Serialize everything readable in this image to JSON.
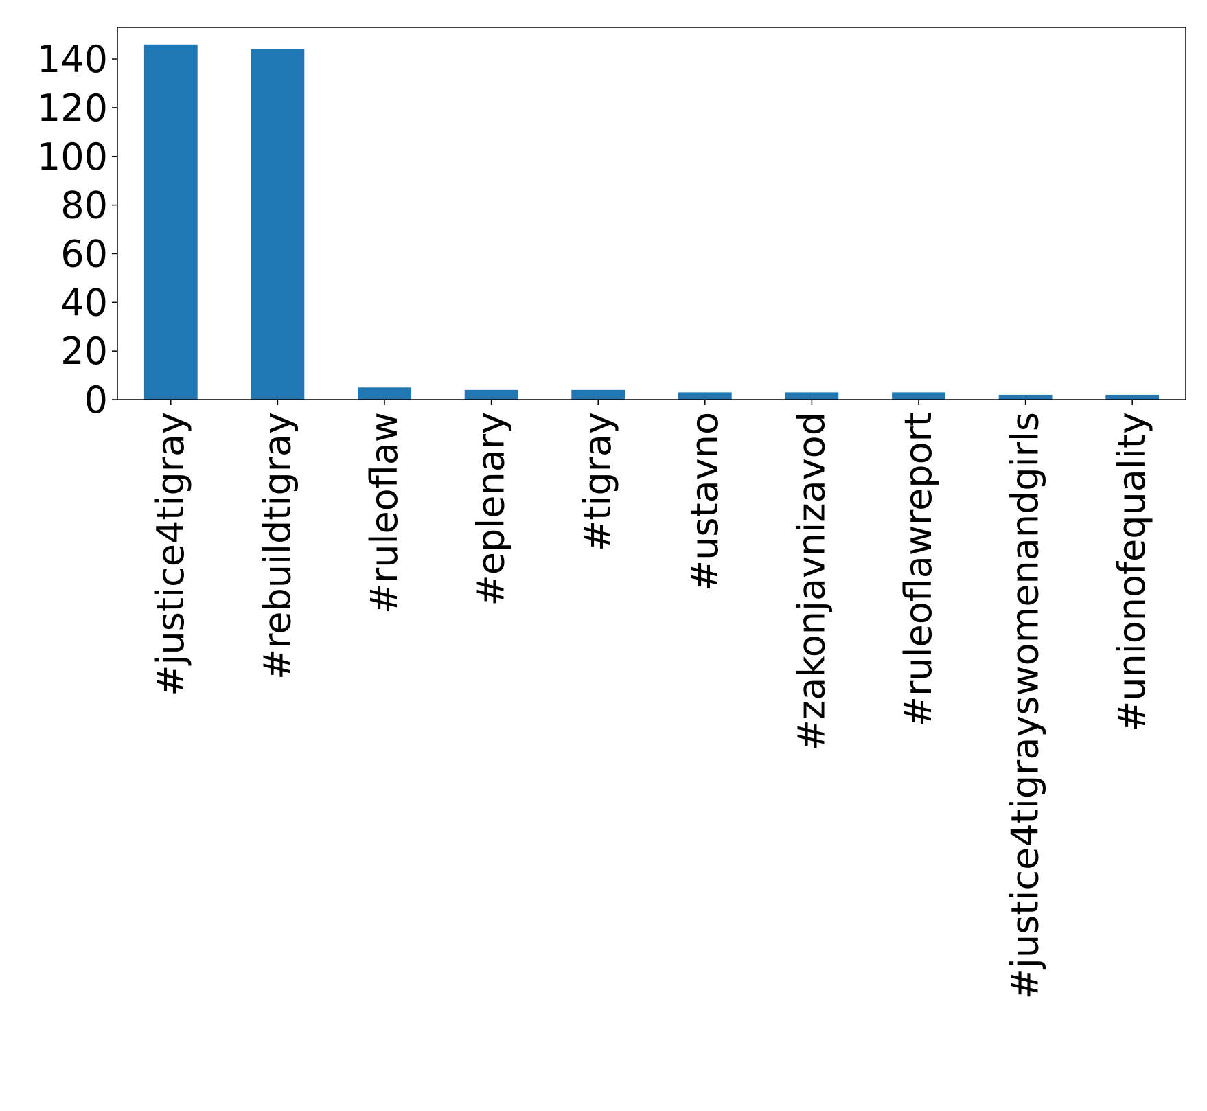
{
  "chart_data": {
    "type": "bar",
    "title": "",
    "xlabel": "",
    "ylabel": "",
    "categories": [
      "#justice4tigray",
      "#rebuildtigray",
      "#ruleoflaw",
      "#eplenary",
      "#tigray",
      "#ustavno",
      "#zakonjavnizavod",
      "#ruleoflawreport",
      "#justice4tigrayswomenandgirls",
      "#unionofequality"
    ],
    "values": [
      146,
      144,
      5,
      4,
      4,
      3,
      3,
      3,
      2,
      2
    ],
    "ylim": [
      0,
      153
    ],
    "yticks": [
      0,
      20,
      40,
      60,
      80,
      100,
      120,
      140
    ],
    "grid": false,
    "bar_color": "#1f77b4"
  }
}
